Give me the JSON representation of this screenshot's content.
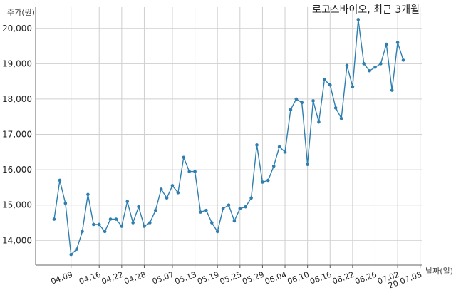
{
  "chart_data": {
    "type": "line",
    "title": "로고스바이오, 최근 3개월",
    "ylabel": "주가(원)",
    "xlabel": "날짜(일)",
    "ylim": [
      13300,
      20600
    ],
    "yticks": [
      14000,
      15000,
      16000,
      17000,
      18000,
      19000,
      20000
    ],
    "ytick_labels": [
      "14,000",
      "15,000",
      "16,000",
      "17,000",
      "18,000",
      "19,000",
      "20,000"
    ],
    "xtick_labels": [
      "04.09",
      "04.16",
      "04.22",
      "04.28",
      "05.07",
      "05.13",
      "05.19",
      "05.25",
      "05.29",
      "06.04",
      "06.10",
      "06.16",
      "06.22",
      "06.26",
      "07.02",
      "20.07.08"
    ],
    "xtick_positions": [
      3,
      8,
      12,
      16,
      21,
      25,
      29,
      33,
      37,
      41,
      45,
      49,
      53,
      57,
      61,
      65
    ],
    "grid": true,
    "series": [
      {
        "color": "#2e7fb0",
        "values": [
          14600,
          15700,
          15050,
          13600,
          13750,
          14250,
          15300,
          14450,
          14450,
          14250,
          14600,
          14600,
          14400,
          15100,
          14500,
          14950,
          14400,
          14500,
          14850,
          15450,
          15200,
          15550,
          15350,
          16350,
          15950,
          15950,
          14800,
          14850,
          14500,
          14250,
          14900,
          15000,
          14550,
          14900,
          14950,
          15200,
          16700,
          15650,
          15700,
          16100,
          16650,
          16500,
          17700,
          18000,
          17900,
          16150,
          17950,
          17350,
          18550,
          18400,
          17750,
          17450,
          18950,
          18350,
          20250,
          19000,
          18800,
          18900,
          19000,
          19550,
          18250,
          19600,
          19100
        ]
      }
    ]
  }
}
